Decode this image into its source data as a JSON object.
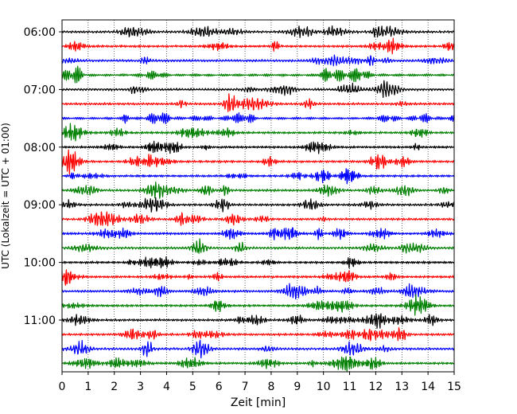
{
  "chart_data": {
    "type": "line",
    "title": "",
    "xlabel": "Zeit  [min]",
    "ylabel": "UTC (Lokalzeit = UTC + 01:00)",
    "xlim": [
      0,
      15
    ],
    "x_ticks": [
      "0",
      "1",
      "2",
      "3",
      "4",
      "5",
      "6",
      "7",
      "8",
      "9",
      "10",
      "11",
      "12",
      "13",
      "14",
      "15"
    ],
    "y_ticks": [
      {
        "label": "06:00",
        "trace": 0
      },
      {
        "label": "07:00",
        "trace": 4
      },
      {
        "label": "08:00",
        "trace": 8
      },
      {
        "label": "09:00",
        "trace": 12
      },
      {
        "label": "10:00",
        "trace": 16
      },
      {
        "label": "11:00",
        "trace": 20
      }
    ],
    "grid": "vertical dotted",
    "trace_minutes": 15,
    "trace_count": 24,
    "trace_colors": [
      "#000000",
      "#ff0000",
      "#0000ff",
      "#008000"
    ]
  }
}
